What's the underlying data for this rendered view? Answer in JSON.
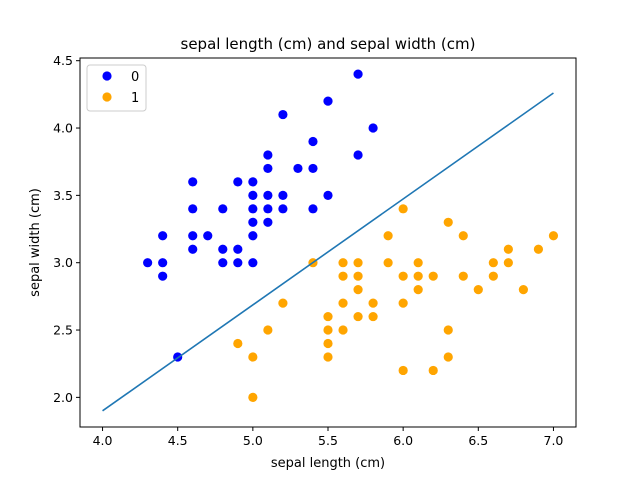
{
  "chart_data": {
    "type": "scatter",
    "title": "sepal length (cm) and sepal width (cm)",
    "xlabel": "sepal length (cm)",
    "ylabel": "sepal width (cm)",
    "xlim": [
      3.85,
      7.15
    ],
    "ylim": [
      1.78,
      4.52
    ],
    "x_ticks": [
      "4.0",
      "4.5",
      "5.0",
      "5.5",
      "6.0",
      "6.5",
      "7.0"
    ],
    "y_ticks": [
      "2.0",
      "2.5",
      "3.0",
      "3.5",
      "4.0",
      "4.5"
    ],
    "grid": false,
    "legend_position": "top-left",
    "series": [
      {
        "name": "0",
        "color": "#0000ff",
        "points": [
          [
            4.3,
            3.0
          ],
          [
            4.4,
            2.9
          ],
          [
            4.4,
            3.0
          ],
          [
            4.4,
            3.2
          ],
          [
            4.5,
            2.3
          ],
          [
            4.6,
            3.1
          ],
          [
            4.6,
            3.2
          ],
          [
            4.6,
            3.4
          ],
          [
            4.6,
            3.6
          ],
          [
            4.7,
            3.2
          ],
          [
            4.8,
            3.0
          ],
          [
            4.8,
            3.1
          ],
          [
            4.8,
            3.4
          ],
          [
            4.9,
            3.0
          ],
          [
            4.9,
            3.1
          ],
          [
            4.9,
            3.6
          ],
          [
            5.0,
            3.0
          ],
          [
            5.0,
            3.2
          ],
          [
            5.0,
            3.3
          ],
          [
            5.0,
            3.4
          ],
          [
            5.0,
            3.5
          ],
          [
            5.0,
            3.6
          ],
          [
            5.1,
            3.3
          ],
          [
            5.1,
            3.4
          ],
          [
            5.1,
            3.5
          ],
          [
            5.1,
            3.7
          ],
          [
            5.1,
            3.8
          ],
          [
            5.2,
            3.4
          ],
          [
            5.2,
            3.5
          ],
          [
            5.2,
            4.1
          ],
          [
            5.3,
            3.7
          ],
          [
            5.4,
            3.4
          ],
          [
            5.4,
            3.7
          ],
          [
            5.4,
            3.9
          ],
          [
            5.5,
            3.5
          ],
          [
            5.5,
            4.2
          ],
          [
            5.7,
            3.8
          ],
          [
            5.7,
            4.4
          ],
          [
            5.8,
            4.0
          ]
        ]
      },
      {
        "name": "1",
        "color": "#ffa500",
        "points": [
          [
            4.9,
            2.4
          ],
          [
            5.0,
            2.0
          ],
          [
            5.0,
            2.3
          ],
          [
            5.1,
            2.5
          ],
          [
            5.2,
            2.7
          ],
          [
            5.4,
            3.0
          ],
          [
            5.5,
            2.3
          ],
          [
            5.5,
            2.4
          ],
          [
            5.5,
            2.5
          ],
          [
            5.5,
            2.6
          ],
          [
            5.6,
            2.5
          ],
          [
            5.6,
            2.7
          ],
          [
            5.6,
            2.9
          ],
          [
            5.6,
            3.0
          ],
          [
            5.7,
            2.6
          ],
          [
            5.7,
            2.8
          ],
          [
            5.7,
            2.9
          ],
          [
            5.7,
            3.0
          ],
          [
            5.8,
            2.6
          ],
          [
            5.8,
            2.7
          ],
          [
            5.9,
            3.0
          ],
          [
            5.9,
            3.2
          ],
          [
            6.0,
            2.2
          ],
          [
            6.0,
            2.7
          ],
          [
            6.0,
            2.9
          ],
          [
            6.0,
            3.4
          ],
          [
            6.1,
            2.8
          ],
          [
            6.1,
            2.9
          ],
          [
            6.1,
            3.0
          ],
          [
            6.2,
            2.2
          ],
          [
            6.2,
            2.9
          ],
          [
            6.3,
            2.3
          ],
          [
            6.3,
            2.5
          ],
          [
            6.3,
            3.3
          ],
          [
            6.4,
            2.9
          ],
          [
            6.4,
            3.2
          ],
          [
            6.5,
            2.8
          ],
          [
            6.6,
            2.9
          ],
          [
            6.6,
            3.0
          ],
          [
            6.7,
            3.0
          ],
          [
            6.7,
            3.1
          ],
          [
            6.8,
            2.8
          ],
          [
            6.9,
            3.1
          ],
          [
            7.0,
            3.2
          ]
        ]
      }
    ],
    "line": {
      "color": "#1f77b4",
      "points": [
        [
          4.0,
          1.9
        ],
        [
          7.0,
          4.26
        ]
      ]
    }
  }
}
